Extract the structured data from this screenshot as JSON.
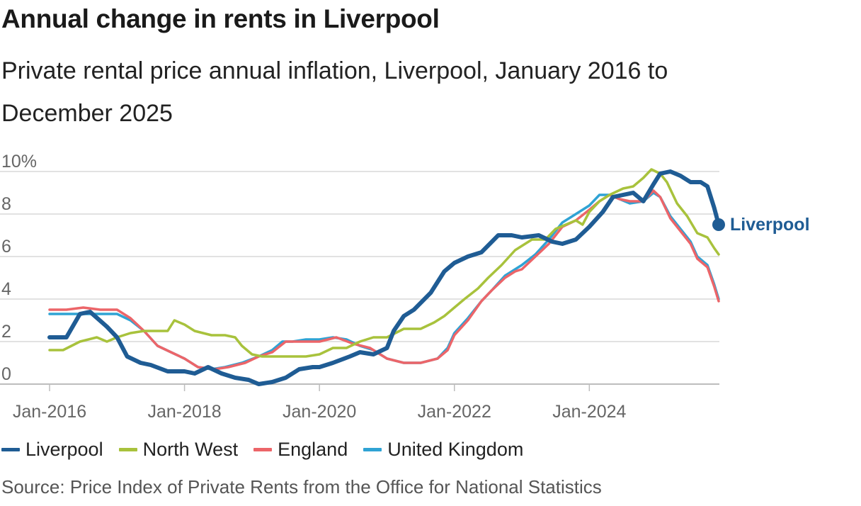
{
  "title": "Annual change in rents in Liverpool",
  "subtitle": "Private rental price annual inflation, Liverpool, January 2016 to December 2025",
  "source": "Source: Price Index of Private Rents from the Office for National Statistics",
  "legend": [
    {
      "name": "Liverpool",
      "color": "#1f5c94"
    },
    {
      "name": "North West",
      "color": "#a8c23c"
    },
    {
      "name": "England",
      "color": "#ec6569"
    },
    {
      "name": "United Kingdom",
      "color": "#2fa3d4"
    }
  ],
  "chart_data": {
    "type": "line",
    "title": "Annual change in rents in Liverpool",
    "xlabel": "",
    "ylabel": "",
    "x_ticks": [
      "Jan-2016",
      "Jan-2018",
      "Jan-2020",
      "Jan-2022",
      "Jan-2024"
    ],
    "y_ticks": [
      "0",
      "2",
      "4",
      "6",
      "8",
      "10%"
    ],
    "y_tick_values": [
      0,
      2,
      4,
      6,
      8,
      10
    ],
    "ylim": [
      0,
      10
    ],
    "xlim": [
      2016.0,
      2025.917
    ],
    "grid": true,
    "end_label": "Liverpool",
    "series": [
      {
        "name": "Liverpool",
        "color": "#1f5c94",
        "points": [
          [
            2016.0,
            2.2
          ],
          [
            2016.25,
            2.2
          ],
          [
            2016.45,
            3.3
          ],
          [
            2016.6,
            3.4
          ],
          [
            2016.85,
            2.7
          ],
          [
            2017.0,
            2.2
          ],
          [
            2017.15,
            1.3
          ],
          [
            2017.35,
            1.0
          ],
          [
            2017.5,
            0.9
          ],
          [
            2017.75,
            0.6
          ],
          [
            2018.0,
            0.6
          ],
          [
            2018.15,
            0.5
          ],
          [
            2018.35,
            0.8
          ],
          [
            2018.55,
            0.5
          ],
          [
            2018.75,
            0.3
          ],
          [
            2018.95,
            0.2
          ],
          [
            2019.1,
            0.0
          ],
          [
            2019.3,
            0.1
          ],
          [
            2019.5,
            0.3
          ],
          [
            2019.7,
            0.7
          ],
          [
            2019.9,
            0.8
          ],
          [
            2020.0,
            0.8
          ],
          [
            2020.2,
            1.0
          ],
          [
            2020.45,
            1.3
          ],
          [
            2020.6,
            1.5
          ],
          [
            2020.8,
            1.4
          ],
          [
            2021.0,
            1.7
          ],
          [
            2021.1,
            2.5
          ],
          [
            2021.25,
            3.2
          ],
          [
            2021.4,
            3.5
          ],
          [
            2021.65,
            4.3
          ],
          [
            2021.85,
            5.3
          ],
          [
            2022.0,
            5.7
          ],
          [
            2022.2,
            6.0
          ],
          [
            2022.4,
            6.2
          ],
          [
            2022.65,
            7.0
          ],
          [
            2022.85,
            7.0
          ],
          [
            2023.0,
            6.9
          ],
          [
            2023.25,
            7.0
          ],
          [
            2023.45,
            6.7
          ],
          [
            2023.6,
            6.6
          ],
          [
            2023.8,
            6.8
          ],
          [
            2024.0,
            7.4
          ],
          [
            2024.2,
            8.1
          ],
          [
            2024.35,
            8.8
          ],
          [
            2024.5,
            8.9
          ],
          [
            2024.65,
            9.0
          ],
          [
            2024.8,
            8.6
          ],
          [
            2024.95,
            9.4
          ],
          [
            2025.05,
            9.9
          ],
          [
            2025.2,
            10.0
          ],
          [
            2025.35,
            9.8
          ],
          [
            2025.5,
            9.5
          ],
          [
            2025.65,
            9.5
          ],
          [
            2025.75,
            9.3
          ],
          [
            2025.85,
            8.3
          ],
          [
            2025.917,
            7.5
          ]
        ]
      },
      {
        "name": "North West",
        "color": "#a8c23c",
        "points": [
          [
            2016.0,
            1.6
          ],
          [
            2016.2,
            1.6
          ],
          [
            2016.45,
            2.0
          ],
          [
            2016.7,
            2.2
          ],
          [
            2016.85,
            2.0
          ],
          [
            2017.0,
            2.2
          ],
          [
            2017.2,
            2.4
          ],
          [
            2017.4,
            2.5
          ],
          [
            2017.6,
            2.5
          ],
          [
            2017.75,
            2.5
          ],
          [
            2017.85,
            3.0
          ],
          [
            2018.0,
            2.8
          ],
          [
            2018.15,
            2.5
          ],
          [
            2018.4,
            2.3
          ],
          [
            2018.6,
            2.3
          ],
          [
            2018.75,
            2.2
          ],
          [
            2018.85,
            1.8
          ],
          [
            2019.0,
            1.4
          ],
          [
            2019.15,
            1.3
          ],
          [
            2019.4,
            1.3
          ],
          [
            2019.6,
            1.3
          ],
          [
            2019.8,
            1.3
          ],
          [
            2020.0,
            1.4
          ],
          [
            2020.2,
            1.7
          ],
          [
            2020.4,
            1.7
          ],
          [
            2020.6,
            2.0
          ],
          [
            2020.8,
            2.2
          ],
          [
            2021.0,
            2.2
          ],
          [
            2021.25,
            2.6
          ],
          [
            2021.5,
            2.6
          ],
          [
            2021.7,
            2.9
          ],
          [
            2021.85,
            3.2
          ],
          [
            2022.0,
            3.6
          ],
          [
            2022.15,
            4.0
          ],
          [
            2022.35,
            4.5
          ],
          [
            2022.5,
            5.0
          ],
          [
            2022.7,
            5.6
          ],
          [
            2022.9,
            6.3
          ],
          [
            2023.0,
            6.5
          ],
          [
            2023.15,
            6.8
          ],
          [
            2023.35,
            6.8
          ],
          [
            2023.5,
            7.3
          ],
          [
            2023.65,
            7.5
          ],
          [
            2023.8,
            7.7
          ],
          [
            2023.9,
            7.5
          ],
          [
            2024.0,
            8.1
          ],
          [
            2024.15,
            8.6
          ],
          [
            2024.3,
            8.9
          ],
          [
            2024.5,
            9.2
          ],
          [
            2024.65,
            9.3
          ],
          [
            2024.8,
            9.7
          ],
          [
            2024.92,
            10.1
          ],
          [
            2025.05,
            9.9
          ],
          [
            2025.15,
            9.5
          ],
          [
            2025.3,
            8.5
          ],
          [
            2025.45,
            7.9
          ],
          [
            2025.6,
            7.1
          ],
          [
            2025.75,
            6.9
          ],
          [
            2025.85,
            6.4
          ],
          [
            2025.917,
            6.1
          ]
        ]
      },
      {
        "name": "England",
        "color": "#ec6569",
        "points": [
          [
            2016.0,
            3.5
          ],
          [
            2016.25,
            3.5
          ],
          [
            2016.5,
            3.6
          ],
          [
            2016.75,
            3.5
          ],
          [
            2017.0,
            3.5
          ],
          [
            2017.2,
            3.1
          ],
          [
            2017.4,
            2.5
          ],
          [
            2017.6,
            1.8
          ],
          [
            2017.8,
            1.5
          ],
          [
            2018.0,
            1.2
          ],
          [
            2018.2,
            0.8
          ],
          [
            2018.45,
            0.7
          ],
          [
            2018.65,
            0.8
          ],
          [
            2018.9,
            1.0
          ],
          [
            2019.1,
            1.3
          ],
          [
            2019.3,
            1.5
          ],
          [
            2019.5,
            2.0
          ],
          [
            2019.7,
            2.0
          ],
          [
            2019.9,
            2.0
          ],
          [
            2020.0,
            2.0
          ],
          [
            2020.25,
            2.2
          ],
          [
            2020.5,
            1.9
          ],
          [
            2020.75,
            1.7
          ],
          [
            2021.0,
            1.2
          ],
          [
            2021.25,
            1.0
          ],
          [
            2021.5,
            1.0
          ],
          [
            2021.75,
            1.2
          ],
          [
            2021.9,
            1.6
          ],
          [
            2022.0,
            2.3
          ],
          [
            2022.2,
            3.0
          ],
          [
            2022.4,
            3.9
          ],
          [
            2022.55,
            4.4
          ],
          [
            2022.75,
            5.0
          ],
          [
            2022.9,
            5.3
          ],
          [
            2023.0,
            5.4
          ],
          [
            2023.2,
            6.0
          ],
          [
            2023.4,
            6.6
          ],
          [
            2023.6,
            7.4
          ],
          [
            2023.8,
            7.7
          ],
          [
            2024.0,
            8.2
          ],
          [
            2024.15,
            8.6
          ],
          [
            2024.3,
            8.9
          ],
          [
            2024.45,
            8.7
          ],
          [
            2024.6,
            8.6
          ],
          [
            2024.8,
            8.6
          ],
          [
            2024.95,
            9.1
          ],
          [
            2025.05,
            8.8
          ],
          [
            2025.2,
            7.8
          ],
          [
            2025.35,
            7.2
          ],
          [
            2025.5,
            6.6
          ],
          [
            2025.6,
            5.9
          ],
          [
            2025.75,
            5.5
          ],
          [
            2025.85,
            4.6
          ],
          [
            2025.917,
            3.9
          ]
        ]
      },
      {
        "name": "United Kingdom",
        "color": "#2fa3d4",
        "points": [
          [
            2016.0,
            3.3
          ],
          [
            2016.25,
            3.3
          ],
          [
            2016.5,
            3.3
          ],
          [
            2016.75,
            3.3
          ],
          [
            2017.0,
            3.3
          ],
          [
            2017.2,
            3.0
          ],
          [
            2017.4,
            2.5
          ],
          [
            2017.6,
            1.8
          ],
          [
            2017.8,
            1.5
          ],
          [
            2018.0,
            1.2
          ],
          [
            2018.2,
            0.8
          ],
          [
            2018.4,
            0.7
          ],
          [
            2018.6,
            0.8
          ],
          [
            2018.85,
            1.0
          ],
          [
            2019.1,
            1.3
          ],
          [
            2019.3,
            1.6
          ],
          [
            2019.45,
            2.0
          ],
          [
            2019.6,
            2.0
          ],
          [
            2019.8,
            2.1
          ],
          [
            2020.0,
            2.1
          ],
          [
            2020.2,
            2.2
          ],
          [
            2020.4,
            2.1
          ],
          [
            2020.6,
            1.8
          ],
          [
            2020.8,
            1.6
          ],
          [
            2021.0,
            1.2
          ],
          [
            2021.25,
            1.0
          ],
          [
            2021.5,
            1.0
          ],
          [
            2021.75,
            1.2
          ],
          [
            2021.9,
            1.7
          ],
          [
            2022.0,
            2.4
          ],
          [
            2022.2,
            3.1
          ],
          [
            2022.4,
            3.9
          ],
          [
            2022.55,
            4.4
          ],
          [
            2022.75,
            5.1
          ],
          [
            2022.9,
            5.4
          ],
          [
            2023.0,
            5.6
          ],
          [
            2023.2,
            6.1
          ],
          [
            2023.4,
            6.8
          ],
          [
            2023.6,
            7.6
          ],
          [
            2023.8,
            8.0
          ],
          [
            2024.0,
            8.4
          ],
          [
            2024.15,
            8.9
          ],
          [
            2024.3,
            8.9
          ],
          [
            2024.45,
            8.7
          ],
          [
            2024.6,
            8.5
          ],
          [
            2024.8,
            8.6
          ],
          [
            2024.95,
            9.0
          ],
          [
            2025.05,
            8.8
          ],
          [
            2025.2,
            7.9
          ],
          [
            2025.35,
            7.3
          ],
          [
            2025.5,
            6.7
          ],
          [
            2025.6,
            6.0
          ],
          [
            2025.75,
            5.6
          ],
          [
            2025.85,
            4.7
          ],
          [
            2025.917,
            4.0
          ]
        ]
      }
    ]
  }
}
